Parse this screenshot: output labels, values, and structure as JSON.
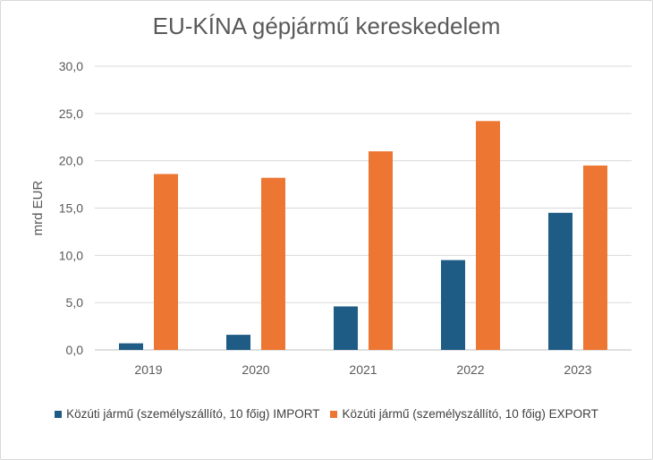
{
  "chart_data": {
    "type": "bar",
    "title": "EU-KÍNA gépjármű kereskedelem",
    "ylabel": "mrd EUR",
    "xlabel": "",
    "categories": [
      "2019",
      "2020",
      "2021",
      "2022",
      "2023"
    ],
    "ylim": [
      0,
      30
    ],
    "yticks": [
      "0,0",
      "5,0",
      "10,0",
      "15,0",
      "20,0",
      "25,0",
      "30,0"
    ],
    "grid": true,
    "legend_position": "bottom",
    "series": [
      {
        "name": "Közúti jármű (személyszállító, 10 főig) IMPORT",
        "color": "#1f5c85",
        "values": [
          0.7,
          1.6,
          4.6,
          9.5,
          14.5
        ]
      },
      {
        "name": "Közúti jármű (személyszállító, 10 főig) EXPORT",
        "color": "#ec7632",
        "values": [
          18.6,
          18.2,
          21.0,
          24.2,
          19.5
        ]
      }
    ]
  }
}
